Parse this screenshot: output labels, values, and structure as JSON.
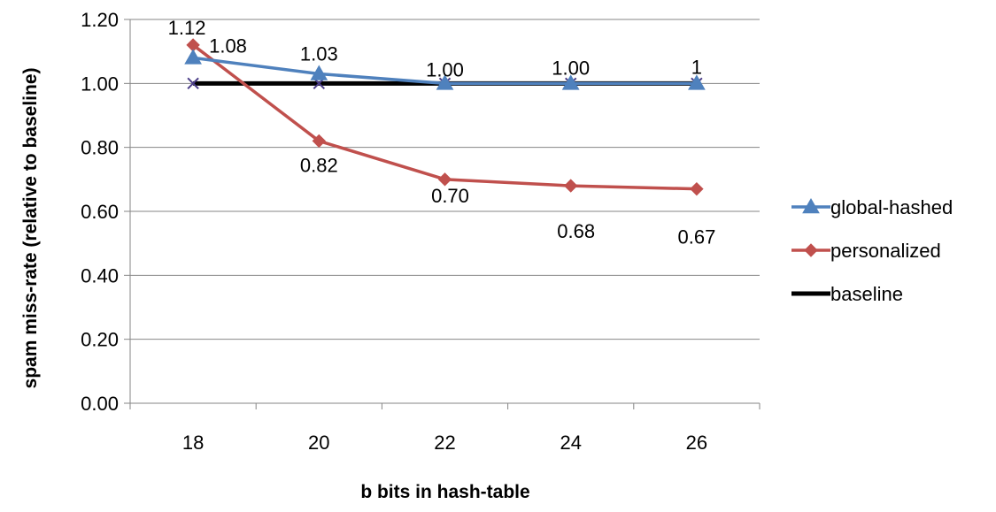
{
  "chart_data": {
    "type": "line",
    "title": "",
    "xlabel": "b bits in hash-table",
    "ylabel": "spam miss-rate (relative to baseline)",
    "categories": [
      "18",
      "20",
      "22",
      "24",
      "26"
    ],
    "ylim": [
      0,
      1.2
    ],
    "yticks": [
      "0.00",
      "0.20",
      "0.40",
      "0.60",
      "0.80",
      "1.00",
      "1.20"
    ],
    "grid": true,
    "legend_position": "right",
    "series": [
      {
        "name": "global-hashed",
        "values": [
          1.08,
          1.03,
          1.0,
          1.0,
          1.0
        ],
        "labels": [
          "1.08",
          "1.03",
          "1.00",
          "1.00",
          "1"
        ],
        "color": "#4F81BD",
        "marker": "triangle"
      },
      {
        "name": "personalized",
        "values": [
          1.12,
          0.82,
          0.7,
          0.68,
          0.67
        ],
        "labels": [
          "1.12",
          "0.82",
          "0.70",
          "0.68",
          "0.67"
        ],
        "color": "#C0504D",
        "marker": "diamond"
      },
      {
        "name": "baseline",
        "values": [
          1.0,
          1.0,
          1.0,
          1.0,
          1.0
        ],
        "labels": [],
        "color": "#000000",
        "marker": "x"
      }
    ]
  }
}
